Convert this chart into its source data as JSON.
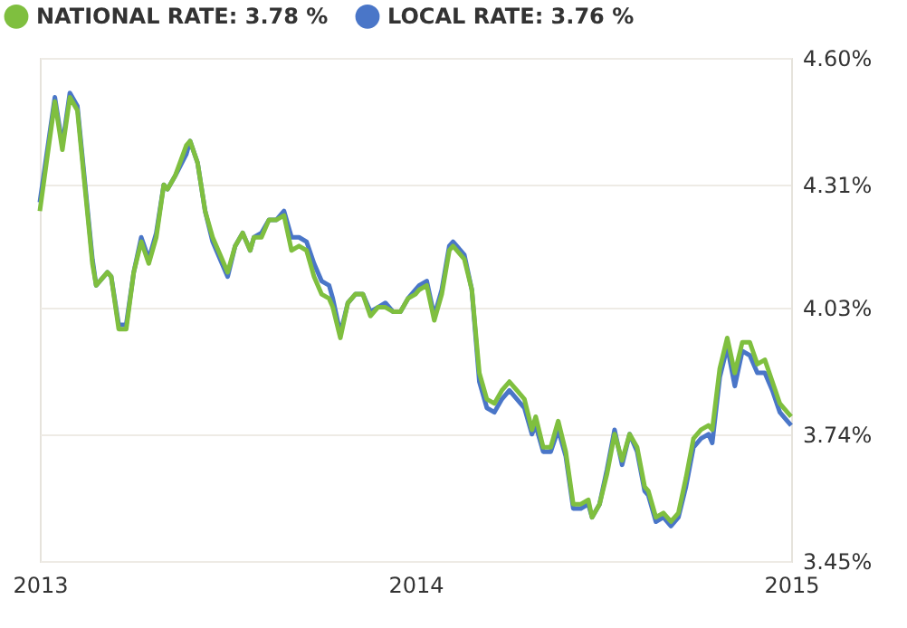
{
  "chart_data": {
    "type": "line",
    "x": [
      2013.0,
      2013.04,
      2013.06,
      2013.08,
      2013.1,
      2013.14,
      2013.15,
      2013.18,
      2013.19,
      2013.21,
      2013.23,
      2013.25,
      2013.27,
      2013.29,
      2013.31,
      2013.33,
      2013.34,
      2013.36,
      2013.39,
      2013.4,
      2013.42,
      2013.44,
      2013.46,
      2013.48,
      2013.5,
      2013.52,
      2013.54,
      2013.56,
      2013.57,
      2013.59,
      2013.61,
      2013.63,
      2013.65,
      2013.67,
      2013.69,
      2013.71,
      2013.73,
      2013.75,
      2013.77,
      2013.78,
      2013.8,
      2013.82,
      2013.84,
      2013.86,
      2013.88,
      2013.9,
      2013.92,
      2013.94,
      2013.96,
      2013.98,
      2014.0,
      2014.01,
      2014.03,
      2014.05,
      2014.07,
      2014.09,
      2014.1,
      2014.13,
      2014.15,
      2014.17,
      2014.19,
      2014.21,
      2014.23,
      2014.25,
      2014.27,
      2014.29,
      2014.31,
      2014.32,
      2014.34,
      2014.36,
      2014.38,
      2014.4,
      2014.42,
      2014.44,
      2014.46,
      2014.47,
      2014.49,
      2014.51,
      2014.53,
      2014.55,
      2014.57,
      2014.59,
      2014.61,
      2014.62,
      2014.64,
      2014.66,
      2014.68,
      2014.7,
      2014.72,
      2014.74,
      2014.76,
      2014.78,
      2014.79,
      2014.81,
      2014.83,
      2014.85,
      2014.87,
      2014.89,
      2014.91,
      2014.93,
      2014.95,
      2014.97,
      2014.99,
      2015.0
    ],
    "series": [
      {
        "name": "LOCAL RATE: 3.76 %",
        "color": "#4a76c8",
        "values": [
          4.27,
          4.51,
          4.4,
          4.52,
          4.49,
          4.14,
          4.08,
          4.11,
          4.1,
          3.99,
          3.99,
          4.11,
          4.19,
          4.14,
          4.2,
          4.31,
          4.3,
          4.33,
          4.38,
          4.41,
          4.36,
          4.25,
          4.18,
          4.14,
          4.1,
          4.17,
          4.2,
          4.16,
          4.19,
          4.2,
          4.23,
          4.23,
          4.25,
          4.19,
          4.19,
          4.18,
          4.13,
          4.09,
          4.08,
          4.05,
          3.97,
          4.04,
          4.06,
          4.06,
          4.02,
          4.03,
          4.04,
          4.02,
          4.02,
          4.05,
          4.07,
          4.08,
          4.09,
          4.01,
          4.07,
          4.17,
          4.18,
          4.15,
          4.07,
          3.86,
          3.8,
          3.79,
          3.82,
          3.84,
          3.82,
          3.8,
          3.74,
          3.76,
          3.7,
          3.7,
          3.75,
          3.69,
          3.57,
          3.57,
          3.58,
          3.55,
          3.58,
          3.66,
          3.75,
          3.67,
          3.74,
          3.7,
          3.61,
          3.6,
          3.54,
          3.55,
          3.53,
          3.55,
          3.62,
          3.71,
          3.73,
          3.74,
          3.72,
          3.87,
          3.94,
          3.85,
          3.93,
          3.92,
          3.88,
          3.88,
          3.84,
          3.79,
          3.77,
          3.76
        ]
      },
      {
        "name": "NATIONAL RATE: 3.78 %",
        "color": "#7fbf3f",
        "values": [
          4.25,
          4.5,
          4.39,
          4.51,
          4.48,
          4.13,
          4.08,
          4.11,
          4.1,
          3.98,
          3.98,
          4.11,
          4.18,
          4.13,
          4.19,
          4.31,
          4.3,
          4.33,
          4.4,
          4.41,
          4.36,
          4.25,
          4.19,
          4.15,
          4.11,
          4.17,
          4.2,
          4.16,
          4.19,
          4.19,
          4.23,
          4.23,
          4.24,
          4.16,
          4.17,
          4.16,
          4.1,
          4.06,
          4.05,
          4.03,
          3.96,
          4.04,
          4.06,
          4.06,
          4.01,
          4.03,
          4.03,
          4.02,
          4.02,
          4.05,
          4.06,
          4.07,
          4.08,
          4.0,
          4.06,
          4.16,
          4.17,
          4.14,
          4.07,
          3.88,
          3.82,
          3.81,
          3.84,
          3.86,
          3.84,
          3.82,
          3.75,
          3.78,
          3.71,
          3.71,
          3.77,
          3.7,
          3.58,
          3.58,
          3.59,
          3.55,
          3.58,
          3.65,
          3.74,
          3.68,
          3.74,
          3.71,
          3.62,
          3.61,
          3.55,
          3.56,
          3.54,
          3.56,
          3.64,
          3.73,
          3.75,
          3.76,
          3.75,
          3.89,
          3.96,
          3.88,
          3.95,
          3.95,
          3.9,
          3.91,
          3.86,
          3.81,
          3.79,
          3.78
        ]
      }
    ],
    "xlim": [
      2013,
      2015
    ],
    "xticks": [
      2013,
      2014,
      2015
    ],
    "ylim": [
      3.45,
      4.6
    ],
    "yticks": [
      {
        "value": 3.45,
        "label": "3.45%"
      },
      {
        "value": 3.74,
        "label": "3.74%"
      },
      {
        "value": 4.03,
        "label": "4.03%"
      },
      {
        "value": 4.31,
        "label": "4.31%"
      },
      {
        "value": 4.6,
        "label": "4.60%"
      }
    ],
    "grid": "y",
    "legend": "top left"
  }
}
